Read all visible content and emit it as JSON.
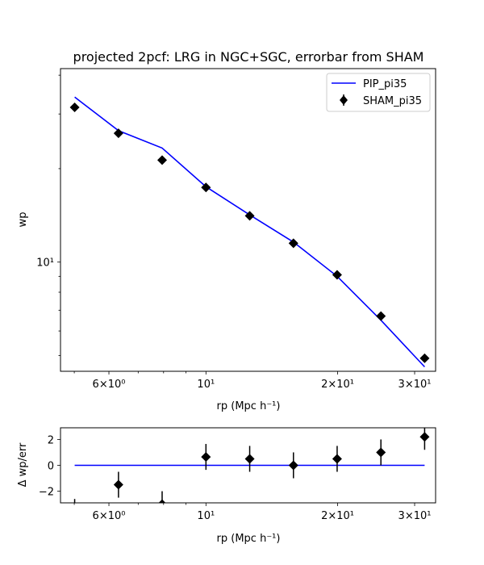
{
  "chart_data": [
    {
      "type": "line",
      "title": "projected 2pcf: LRG in NGC+SGC, errorbar from SHAM",
      "xlabel": "rp (Mpc h⁻¹)",
      "ylabel": "wp",
      "xscale": "log",
      "yscale": "log",
      "xlim": [
        4.65,
        33.5
      ],
      "ylim": [
        4.45,
        42
      ],
      "x_ticks": [
        {
          "value": 6,
          "label": "6×10⁰"
        },
        {
          "value": 10,
          "label": "10¹"
        },
        {
          "value": 20,
          "label": "2×10¹"
        },
        {
          "value": 30,
          "label": "3×10¹"
        }
      ],
      "y_ticks": [
        {
          "value": 10,
          "label": "10¹"
        }
      ],
      "legend_position": "top-right",
      "series": [
        {
          "name": "PIP_pi35",
          "style": "line",
          "color": "#0000ff",
          "x": [
            5.01,
            6.31,
            7.94,
            10.0,
            12.59,
            15.85,
            19.95,
            25.12,
            31.62
          ],
          "y": [
            34.0,
            26.5,
            23.3,
            17.5,
            14.2,
            11.6,
            9.0,
            6.5,
            4.6
          ]
        },
        {
          "name": "SHAM_pi35",
          "style": "marker",
          "marker": "diamond",
          "color": "#000000",
          "x": [
            5.01,
            6.31,
            7.94,
            10.0,
            12.59,
            15.85,
            19.95,
            25.12,
            31.62
          ],
          "y": [
            31.5,
            26.0,
            21.3,
            17.4,
            14.1,
            11.5,
            9.1,
            6.7,
            4.9
          ]
        }
      ]
    },
    {
      "type": "scatter",
      "xlabel": "rp (Mpc h⁻¹)",
      "ylabel": "Δ wp/err",
      "xscale": "log",
      "xlim": [
        4.65,
        33.5
      ],
      "ylim": [
        -2.9,
        2.9
      ],
      "x_ticks": [
        {
          "value": 6,
          "label": "6×10⁰"
        },
        {
          "value": 10,
          "label": "10¹"
        },
        {
          "value": 20,
          "label": "2×10¹"
        },
        {
          "value": 30,
          "label": "3×10¹"
        }
      ],
      "y_ticks": [
        {
          "value": 2,
          "label": "2"
        },
        {
          "value": 0,
          "label": "0"
        },
        {
          "value": -2,
          "label": "−2"
        }
      ],
      "series": [
        {
          "name": "",
          "style": "marker",
          "marker": "diamond",
          "color": "#000000",
          "x": [
            5.01,
            6.31,
            7.94,
            10.0,
            12.59,
            15.85,
            19.95,
            25.12,
            31.62
          ],
          "y": [
            -3.6,
            -1.5,
            -3.0,
            0.65,
            0.5,
            0.0,
            0.5,
            1.0,
            2.2
          ],
          "err": [
            1.0,
            1.0,
            1.0,
            1.0,
            1.0,
            1.0,
            1.0,
            1.0,
            1.0
          ]
        },
        {
          "name": "",
          "style": "line",
          "color": "#0000ff",
          "x": [
            5.01,
            31.62
          ],
          "y": [
            0,
            0
          ]
        }
      ]
    }
  ]
}
